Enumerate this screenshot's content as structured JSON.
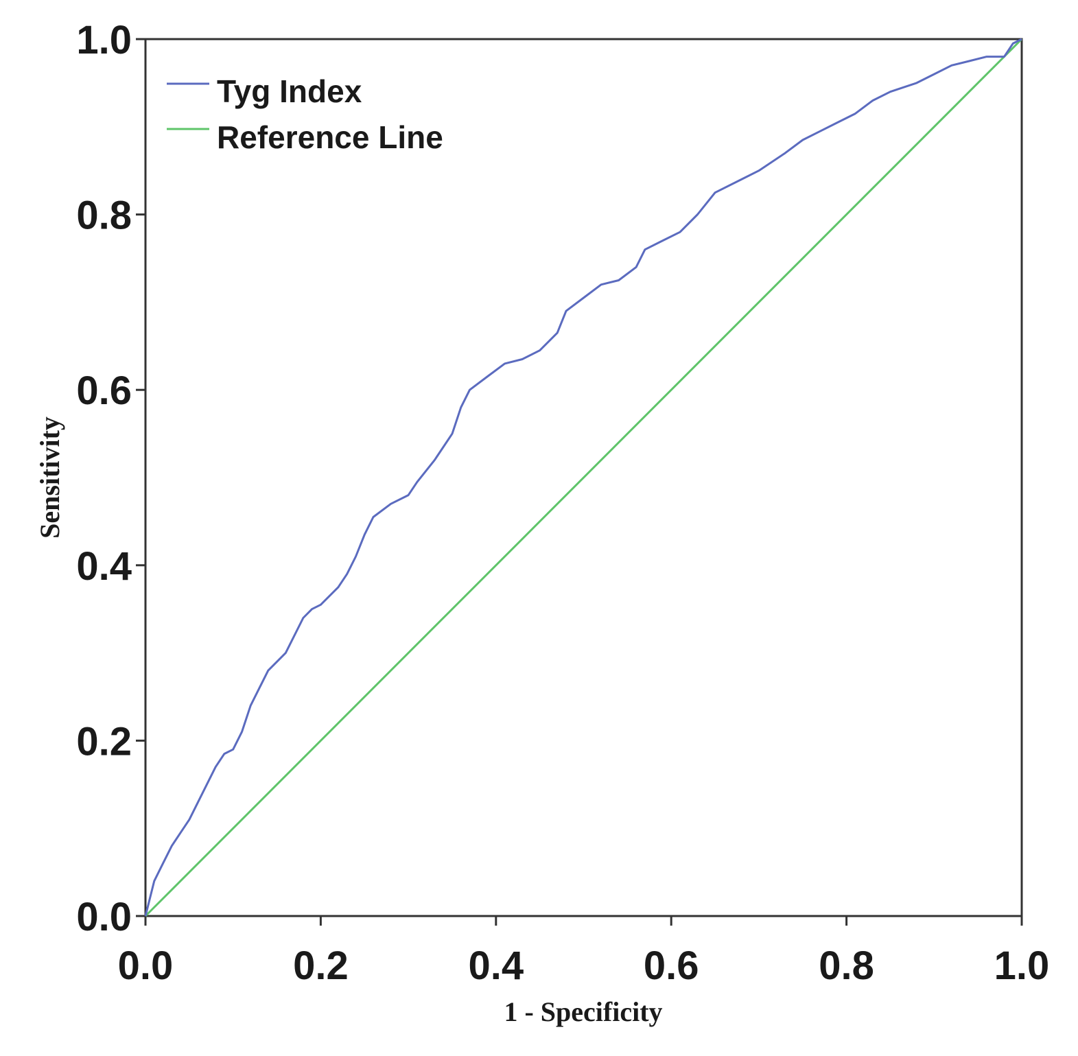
{
  "chart_data": {
    "type": "line",
    "title": "",
    "xlabel": "1 - Specificity",
    "ylabel": "Sensitivity",
    "xlim": [
      0,
      1
    ],
    "ylim": [
      0,
      1
    ],
    "x_ticks": [
      "0.0",
      "0.2",
      "0.4",
      "0.6",
      "0.8",
      "1.0"
    ],
    "y_ticks": [
      "0.0",
      "0.2",
      "0.4",
      "0.6",
      "0.8",
      "1.0"
    ],
    "grid": false,
    "legend_position": "top-left",
    "series": [
      {
        "name": "Tyg Index",
        "color": "#5b6bbf",
        "x": [
          0.0,
          0.005,
          0.01,
          0.02,
          0.03,
          0.04,
          0.05,
          0.06,
          0.07,
          0.08,
          0.09,
          0.1,
          0.11,
          0.12,
          0.13,
          0.14,
          0.15,
          0.16,
          0.18,
          0.19,
          0.2,
          0.22,
          0.23,
          0.24,
          0.25,
          0.26,
          0.28,
          0.3,
          0.31,
          0.33,
          0.35,
          0.36,
          0.37,
          0.39,
          0.41,
          0.43,
          0.45,
          0.47,
          0.48,
          0.5,
          0.52,
          0.54,
          0.56,
          0.57,
          0.59,
          0.61,
          0.63,
          0.65,
          0.68,
          0.7,
          0.73,
          0.75,
          0.77,
          0.79,
          0.81,
          0.83,
          0.85,
          0.88,
          0.9,
          0.92,
          0.94,
          0.96,
          0.98,
          0.99,
          1.0
        ],
        "y": [
          0.0,
          0.02,
          0.04,
          0.06,
          0.08,
          0.095,
          0.11,
          0.13,
          0.15,
          0.17,
          0.185,
          0.19,
          0.21,
          0.24,
          0.26,
          0.28,
          0.29,
          0.3,
          0.34,
          0.35,
          0.355,
          0.375,
          0.39,
          0.41,
          0.435,
          0.455,
          0.47,
          0.48,
          0.495,
          0.52,
          0.55,
          0.58,
          0.6,
          0.615,
          0.63,
          0.635,
          0.645,
          0.665,
          0.69,
          0.705,
          0.72,
          0.725,
          0.74,
          0.76,
          0.77,
          0.78,
          0.8,
          0.825,
          0.84,
          0.85,
          0.87,
          0.885,
          0.895,
          0.905,
          0.915,
          0.93,
          0.94,
          0.95,
          0.96,
          0.97,
          0.975,
          0.98,
          0.98,
          0.995,
          1.0
        ]
      },
      {
        "name": "Reference Line",
        "color": "#5fc46a",
        "x": [
          0,
          1
        ],
        "y": [
          0,
          1
        ]
      }
    ]
  }
}
